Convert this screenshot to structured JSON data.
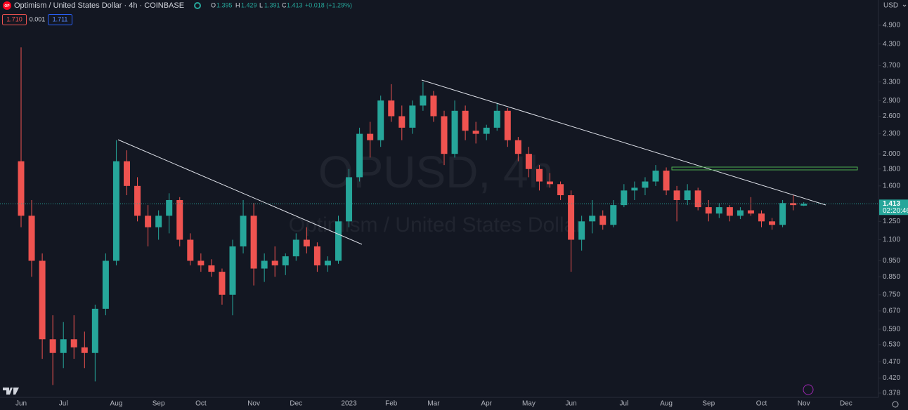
{
  "header": {
    "logo": "OP",
    "symbol": "Optimism / United States Dollar · 4h · COINBASE",
    "ohlc": {
      "o_key": "O",
      "o": "1.395",
      "h_key": "H",
      "h": "1.429",
      "l_key": "L",
      "l": "1.391",
      "c_key": "C",
      "c": "1.413",
      "change": "+0.018 (+1.29%)"
    },
    "sell": "1.710",
    "spread": "0.001",
    "buy": "1.711",
    "currency": "USD"
  },
  "chart_data": {
    "type": "candlestick",
    "watermark": "OPUSD, 4h",
    "watermark_subtitle": "Optimism / United States Dollar",
    "up_color": "#26a69a",
    "down_color": "#ef5350",
    "log_scale": true,
    "grid": false,
    "categories": [
      "Jun",
      null,
      null,
      null,
      "Jul",
      null,
      null,
      null,
      null,
      "Aug",
      null,
      null,
      null,
      "Sep",
      null,
      null,
      null,
      "Oct",
      null,
      null,
      null,
      null,
      "Nov",
      null,
      null,
      null,
      "Dec",
      null,
      null,
      null,
      null,
      "2023",
      null,
      null,
      null,
      "Feb",
      null,
      null,
      null,
      "Mar",
      null,
      null,
      null,
      null,
      "Apr",
      null,
      null,
      null,
      "May",
      null,
      null,
      null,
      "Jun",
      null,
      null,
      null,
      null,
      "Jul",
      null,
      null,
      null,
      "Aug",
      null,
      null,
      null,
      "Sep",
      null,
      null,
      null,
      null,
      "Oct",
      null,
      null,
      null,
      "Nov",
      null,
      null,
      null,
      "Dec"
    ],
    "open": [
      1.9,
      1.3,
      0.95,
      0.55,
      0.5,
      0.55,
      0.52,
      0.5,
      0.68,
      0.95,
      1.9,
      1.6,
      1.3,
      1.2,
      1.3,
      1.45,
      1.1,
      0.95,
      0.92,
      0.88,
      0.75,
      1.05,
      1.3,
      0.9,
      0.95,
      0.92,
      0.98,
      1.1,
      1.05,
      0.92,
      0.95,
      1.25,
      1.7,
      2.3,
      2.2,
      2.9,
      2.6,
      2.4,
      2.8,
      3.0,
      2.6,
      2.0,
      2.7,
      2.35,
      2.3,
      2.4,
      2.7,
      2.2,
      2.0,
      1.8,
      1.65,
      1.62,
      1.5,
      1.1,
      1.25,
      1.3,
      1.22,
      1.4,
      1.55,
      1.58,
      1.65,
      1.78,
      1.55,
      1.45,
      1.55,
      1.38,
      1.32,
      1.38,
      1.3,
      1.35,
      1.32,
      1.25,
      1.22,
      1.42,
      1.395,
      null,
      null,
      null,
      null
    ],
    "high": [
      4.2,
      1.45,
      1.0,
      0.65,
      0.62,
      0.65,
      0.58,
      0.7,
      1.0,
      2.2,
      2.05,
      1.7,
      1.4,
      1.35,
      1.52,
      1.48,
      1.15,
      1.0,
      0.96,
      0.9,
      1.1,
      1.45,
      1.42,
      1.0,
      1.05,
      1.0,
      1.15,
      1.2,
      1.08,
      0.98,
      1.3,
      1.8,
      2.4,
      2.5,
      3.0,
      3.25,
      2.8,
      2.9,
      3.3,
      3.1,
      2.7,
      2.9,
      2.8,
      2.5,
      2.45,
      2.85,
      2.75,
      2.25,
      2.1,
      1.85,
      1.75,
      1.65,
      1.55,
      1.3,
      1.45,
      1.35,
      1.45,
      1.62,
      1.65,
      1.7,
      1.85,
      1.82,
      1.6,
      1.62,
      1.58,
      1.45,
      1.42,
      1.4,
      1.38,
      1.48,
      1.35,
      1.28,
      1.45,
      1.5,
      1.429,
      null,
      null,
      null,
      null
    ],
    "low": [
      1.2,
      0.85,
      0.48,
      0.4,
      0.45,
      0.48,
      0.45,
      0.41,
      0.65,
      0.92,
      1.5,
      1.25,
      1.05,
      1.1,
      1.15,
      1.05,
      0.92,
      0.88,
      0.85,
      0.7,
      0.65,
      1.0,
      0.8,
      0.82,
      0.85,
      0.86,
      0.95,
      1.0,
      0.88,
      0.88,
      0.93,
      1.2,
      1.65,
      1.95,
      2.1,
      2.5,
      2.2,
      2.3,
      2.7,
      2.5,
      1.85,
      1.95,
      2.2,
      2.15,
      2.2,
      2.35,
      2.1,
      1.9,
      1.7,
      1.55,
      1.58,
      1.45,
      0.88,
      1.02,
      1.15,
      1.18,
      1.2,
      1.38,
      1.45,
      1.5,
      1.6,
      1.5,
      1.25,
      1.4,
      1.35,
      1.25,
      1.28,
      1.25,
      1.27,
      1.3,
      1.2,
      1.18,
      1.2,
      1.35,
      1.391,
      null,
      null,
      null,
      null
    ],
    "close": [
      1.3,
      0.95,
      0.55,
      0.5,
      0.55,
      0.52,
      0.5,
      0.68,
      0.95,
      1.9,
      1.6,
      1.3,
      1.2,
      1.3,
      1.45,
      1.1,
      0.95,
      0.92,
      0.88,
      0.75,
      1.05,
      1.3,
      0.9,
      0.95,
      0.92,
      0.98,
      1.1,
      1.05,
      0.92,
      0.95,
      1.25,
      1.7,
      2.3,
      2.2,
      2.9,
      2.6,
      2.4,
      2.8,
      3.0,
      2.6,
      2.0,
      2.7,
      2.35,
      2.3,
      2.4,
      2.7,
      2.2,
      2.0,
      1.8,
      1.65,
      1.62,
      1.5,
      1.1,
      1.25,
      1.3,
      1.22,
      1.4,
      1.55,
      1.58,
      1.65,
      1.78,
      1.55,
      1.45,
      1.55,
      1.38,
      1.32,
      1.38,
      1.3,
      1.35,
      1.32,
      1.25,
      1.22,
      1.42,
      1.4,
      1.413,
      null,
      null,
      null,
      null
    ],
    "ylim": [
      0.367,
      5.84
    ],
    "yticks": [
      {
        "value": 4.9,
        "label": "4.900"
      },
      {
        "value": 4.3,
        "label": "4.300"
      },
      {
        "value": 3.7,
        "label": "3.700"
      },
      {
        "value": 3.3,
        "label": "3.300"
      },
      {
        "value": 2.9,
        "label": "2.900"
      },
      {
        "value": 2.6,
        "label": "2.600"
      },
      {
        "value": 2.3,
        "label": "2.300"
      },
      {
        "value": 2,
        "label": "2.000"
      },
      {
        "value": 1.8,
        "label": "1.800"
      },
      {
        "value": 1.6,
        "label": "1.600"
      },
      {
        "value": 1.25,
        "label": "1.250"
      },
      {
        "value": 1.1,
        "label": "1.100"
      },
      {
        "value": 0.95,
        "label": "0.950"
      },
      {
        "value": 0.85,
        "label": "0.850"
      },
      {
        "value": 0.75,
        "label": "0.750"
      },
      {
        "value": 0.67,
        "label": "0.670"
      },
      {
        "value": 0.59,
        "label": "0.590"
      },
      {
        "value": 0.53,
        "label": "0.530"
      },
      {
        "value": 0.47,
        "label": "0.470"
      },
      {
        "value": 0.42,
        "label": "0.420"
      },
      {
        "value": 0.378,
        "label": "0.378"
      }
    ],
    "last_price": {
      "value": 1.413,
      "label": "1.413"
    },
    "countdown": "02:20:46"
  }
}
